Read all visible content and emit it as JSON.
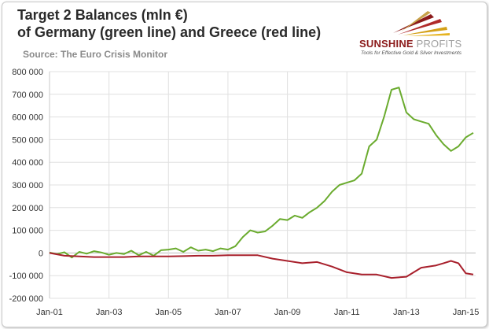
{
  "header": {
    "title_line1": "Target 2 Balances (mln €)",
    "title_line2": "of Germany (green line) and Greece (red line)",
    "source": "Source: The Euro Crisis Monitor"
  },
  "logo": {
    "brand_part1": "SUNSHINE",
    "brand_part2": "PROFITS",
    "tagline": "Tools for Effective Gold & Silver Investments",
    "colors": {
      "brand": "#8b1a1a",
      "accent": "#d4a017"
    }
  },
  "chart_data": {
    "type": "line",
    "title": "Target 2 Balances (mln €)",
    "xlabel": "",
    "ylabel": "",
    "ylim": [
      -200000,
      800000
    ],
    "xlim": [
      2001.0,
      2015.33
    ],
    "yticks": [
      800000,
      700000,
      600000,
      500000,
      400000,
      300000,
      200000,
      100000,
      0,
      -100000,
      -200000
    ],
    "ytick_labels": [
      "800 000",
      "700 000",
      "600 000",
      "500 000",
      "400 000",
      "300 000",
      "200 000",
      "100 000",
      "0",
      "-100 000",
      "-200 000"
    ],
    "xticks": [
      2001,
      2003,
      2005,
      2007,
      2009,
      2011,
      2013,
      2015
    ],
    "xtick_labels": [
      "Jan-01",
      "Jan-03",
      "Jan-05",
      "Jan-07",
      "Jan-09",
      "Jan-11",
      "Jan-13",
      "Jan-15"
    ],
    "grid": true,
    "series": [
      {
        "name": "Germany",
        "color": "#6aab2e",
        "x": [
          2001.0,
          2001.25,
          2001.5,
          2001.75,
          2002.0,
          2002.25,
          2002.5,
          2002.75,
          2003.0,
          2003.25,
          2003.5,
          2003.75,
          2004.0,
          2004.25,
          2004.5,
          2004.75,
          2005.0,
          2005.25,
          2005.5,
          2005.75,
          2006.0,
          2006.25,
          2006.5,
          2006.75,
          2007.0,
          2007.25,
          2007.5,
          2007.75,
          2008.0,
          2008.25,
          2008.5,
          2008.75,
          2009.0,
          2009.25,
          2009.5,
          2009.75,
          2010.0,
          2010.25,
          2010.5,
          2010.75,
          2011.0,
          2011.25,
          2011.5,
          2011.75,
          2012.0,
          2012.25,
          2012.5,
          2012.75,
          2013.0,
          2013.25,
          2013.5,
          2013.75,
          2014.0,
          2014.25,
          2014.5,
          2014.75,
          2015.0,
          2015.25
        ],
        "values": [
          2000,
          -5000,
          3000,
          -20000,
          5000,
          -3000,
          8000,
          2000,
          -8000,
          0,
          -5000,
          10000,
          -10000,
          5000,
          -12000,
          12000,
          15000,
          20000,
          5000,
          25000,
          10000,
          15000,
          8000,
          20000,
          15000,
          30000,
          70000,
          100000,
          90000,
          95000,
          120000,
          150000,
          145000,
          165000,
          155000,
          180000,
          200000,
          230000,
          270000,
          300000,
          310000,
          320000,
          350000,
          470000,
          500000,
          600000,
          720000,
          730000,
          620000,
          590000,
          580000,
          570000,
          520000,
          480000,
          450000,
          470000,
          510000,
          530000
        ]
      },
      {
        "name": "Greece",
        "color": "#a8202c",
        "x": [
          2001.0,
          2001.5,
          2002.0,
          2002.5,
          2003.0,
          2003.5,
          2004.0,
          2004.5,
          2005.0,
          2005.5,
          2006.0,
          2006.5,
          2007.0,
          2007.5,
          2008.0,
          2008.5,
          2009.0,
          2009.5,
          2010.0,
          2010.5,
          2011.0,
          2011.5,
          2012.0,
          2012.5,
          2013.0,
          2013.5,
          2014.0,
          2014.25,
          2014.5,
          2014.75,
          2015.0,
          2015.25
        ],
        "values": [
          0,
          -12000,
          -15000,
          -18000,
          -18000,
          -18000,
          -15000,
          -15000,
          -15000,
          -14000,
          -12000,
          -12000,
          -10000,
          -10000,
          -10000,
          -25000,
          -35000,
          -45000,
          -40000,
          -60000,
          -85000,
          -95000,
          -95000,
          -110000,
          -105000,
          -65000,
          -55000,
          -45000,
          -35000,
          -45000,
          -90000,
          -95000
        ]
      }
    ]
  }
}
